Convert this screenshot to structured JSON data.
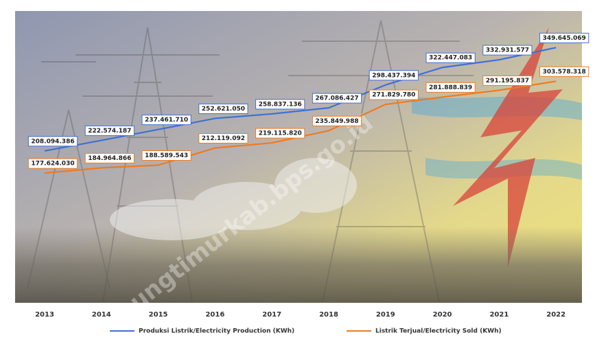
{
  "chart_data": {
    "type": "line",
    "watermark": "lampungtimurkab.bps.go.id",
    "categories": [
      "2013",
      "2014",
      "2015",
      "2016",
      "2017",
      "2018",
      "2019",
      "2020",
      "2021",
      "2022"
    ],
    "series": [
      {
        "name": "Produksi Listrik/Electricity Production (KWh)",
        "color": "#3f6fd6",
        "values": [
          208094386,
          222574187,
          237461710,
          252621050,
          258837136,
          267086427,
          298437394,
          322447083,
          332931577,
          349645069
        ],
        "value_labels": [
          "208.094.386",
          "222.574.187",
          "237.461.710",
          "252.621.050",
          "258.837.136",
          "267.086.427",
          "298.437.394",
          "322.447.083",
          "332.931.577",
          "349.645.069"
        ]
      },
      {
        "name": "Listrik Terjual/Electricity Sold (KWh)",
        "color": "#f07a1e",
        "values": [
          177624030,
          184964866,
          188589543,
          212119092,
          219115820,
          235849988,
          271829780,
          281888839,
          291195837,
          303578318
        ],
        "value_labels": [
          "177.624.030",
          "184.964.866",
          "188.589.543",
          "212.119.092",
          "219.115.820",
          "235.849.988",
          "271.829.780",
          "281.888.839",
          "291.195.837",
          "303.578.318"
        ]
      }
    ]
  }
}
